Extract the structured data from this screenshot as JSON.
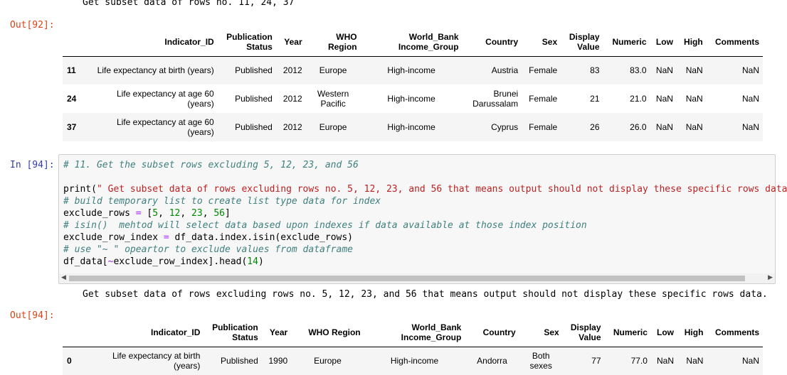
{
  "top_output": {
    "stdout_line": "Get subset data of rows no. 11, 24, 37",
    "out_prompt": "Out[92]:",
    "table": {
      "headers": [
        "Indicator_ID",
        "Publication Status",
        "Year",
        "WHO Region",
        "World_Bank Income_Group",
        "Country",
        "Sex",
        "Display Value",
        "Numeric",
        "Low",
        "High",
        "Comments"
      ],
      "rows": [
        {
          "index": "11",
          "cells": [
            "Life expectancy at birth (years)",
            "Published",
            "2012",
            "Europe",
            "High-income",
            "Austria",
            "Female",
            "83",
            "83.0",
            "NaN",
            "NaN",
            "NaN"
          ]
        },
        {
          "index": "24",
          "cells": [
            "Life expectancy at age 60 (years)",
            "Published",
            "2012",
            "Western Pacific",
            "High-income",
            "Brunei Darussalam",
            "Female",
            "21",
            "21.0",
            "NaN",
            "NaN",
            "NaN"
          ]
        },
        {
          "index": "37",
          "cells": [
            "Life expectancy at age 60 (years)",
            "Published",
            "2012",
            "Europe",
            "High-income",
            "Cyprus",
            "Female",
            "26",
            "26.0",
            "NaN",
            "NaN",
            "NaN"
          ]
        }
      ]
    }
  },
  "input_cell": {
    "in_prompt": "In [94]:",
    "lines": [
      {
        "comment": "# 11. Get the subset rows excluding 5, 12, 23, and 56"
      },
      {
        "blank": ""
      },
      {
        "p1": "print(",
        "s1": "\" Get subset data of rows excluding rows no. 5, 12, 23, and 56 that means output should not display these specific rows data"
      },
      {
        "comment": "# build temporary list to create list type data for index"
      },
      {
        "p1": "exclude_rows ",
        "op": "=",
        "p2": " [",
        "n1": "5",
        "c1": ", ",
        "n2": "12",
        "c2": ", ",
        "n3": "23",
        "c3": ", ",
        "n4": "56",
        "p3": "]"
      },
      {
        "comment": "# isin()  mehtod will select data based upon indexes if data available at those index position"
      },
      {
        "p1": "exclude_row_index ",
        "op": "=",
        "p2": " df_data.index.isin(exclude_rows)"
      },
      {
        "comment": "# use \"~ \" opeartor to exclude values from dataframe"
      },
      {
        "p1": "df_data[",
        "op": "~",
        "p2": "exclude_row_index].head(",
        "n1": "14",
        "p3": ")"
      }
    ]
  },
  "bottom_output": {
    "stdout_line": "Get subset data of rows excluding rows no. 5, 12, 23, and 56 that means output should not display these specific rows data.",
    "out_prompt": "Out[94]:",
    "table": {
      "headers": [
        "Indicator_ID",
        "Publication Status",
        "Year",
        "WHO Region",
        "World_Bank Income_Group",
        "Country",
        "Sex",
        "Display Value",
        "Numeric",
        "Low",
        "High",
        "Comments"
      ],
      "rows": [
        {
          "index": "0",
          "cells": [
            "Life expectancy at birth (years)",
            "Published",
            "1990",
            "Europe",
            "High-income",
            "Andorra",
            "Both sexes",
            "77",
            "77.0",
            "NaN",
            "NaN",
            "NaN"
          ]
        }
      ]
    }
  }
}
